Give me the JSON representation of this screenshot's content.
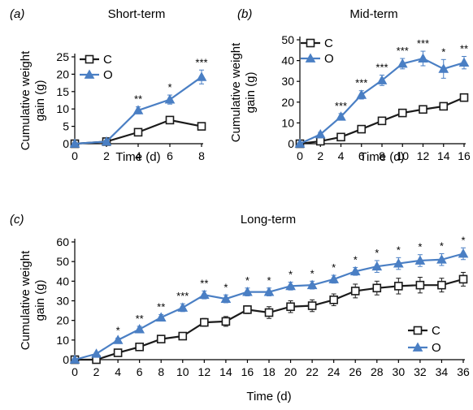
{
  "colors": {
    "control": "#1a1a1a",
    "obese": "#4a7fc4"
  },
  "chart_data": [
    {
      "type": "line",
      "panel_label": "(a)",
      "title": "Short-term",
      "xlabel": "Time (d)",
      "ylabel": "Cumulative weight gain (g)",
      "xlim": [
        0,
        8
      ],
      "ylim": [
        0,
        25
      ],
      "xticks": [
        "0",
        "2",
        "4",
        "6",
        "8"
      ],
      "yticks": [
        "0",
        "5",
        "10",
        "15",
        "20",
        "25"
      ],
      "legend_position": "top-left",
      "x": [
        0,
        2,
        4,
        6,
        8
      ],
      "series": [
        {
          "name": "C",
          "marker": "open-square",
          "values": [
            0,
            0.6,
            3.3,
            6.8,
            5.0
          ],
          "errors": [
            0.3,
            0.4,
            0.6,
            0.9,
            0.8
          ]
        },
        {
          "name": "O",
          "marker": "filled-triangle",
          "values": [
            0,
            0.6,
            9.6,
            12.7,
            19.2
          ],
          "errors": [
            0.3,
            0.4,
            1.0,
            1.3,
            2.0
          ]
        }
      ],
      "significance": [
        "",
        "",
        "**",
        "*",
        "***"
      ]
    },
    {
      "type": "line",
      "panel_label": "(b)",
      "title": "Mid-term",
      "xlabel": "Time (d)",
      "ylabel": "Cumulative weight gain (g)",
      "xlim": [
        0,
        16
      ],
      "ylim": [
        0,
        50
      ],
      "xticks": [
        "0",
        "2",
        "4",
        "6",
        "8",
        "10",
        "12",
        "14",
        "16"
      ],
      "yticks": [
        "0",
        "10",
        "20",
        "30",
        "40",
        "50"
      ],
      "legend_position": "top-left",
      "x": [
        0,
        2,
        4,
        6,
        8,
        10,
        12,
        14,
        16
      ],
      "series": [
        {
          "name": "C",
          "marker": "open-square",
          "values": [
            0,
            1.2,
            3.2,
            7.0,
            11.0,
            14.8,
            16.5,
            18.0,
            22.2
          ],
          "errors": [
            0.3,
            0.5,
            0.7,
            0.9,
            1.0,
            1.2,
            1.3,
            1.5,
            1.8
          ]
        },
        {
          "name": "O",
          "marker": "filled-triangle",
          "values": [
            0,
            4.5,
            13.0,
            23.5,
            30.5,
            38.5,
            41.0,
            36.0,
            39.0
          ],
          "errors": [
            0.3,
            1.0,
            1.5,
            2.0,
            2.5,
            2.5,
            3.5,
            4.5,
            3.0
          ]
        }
      ],
      "significance": [
        "",
        "",
        "***",
        "***",
        "***",
        "***",
        "***",
        "*",
        "**"
      ]
    },
    {
      "type": "line",
      "panel_label": "(c)",
      "title": "Long-term",
      "xlabel": "Time (d)",
      "ylabel": "Cumulative weight gain (g)",
      "xlim": [
        0,
        36
      ],
      "ylim": [
        0,
        60
      ],
      "xticks": [
        "0",
        "2",
        "4",
        "6",
        "8",
        "10",
        "12",
        "14",
        "16",
        "18",
        "20",
        "22",
        "24",
        "26",
        "28",
        "30",
        "32",
        "34",
        "36"
      ],
      "yticks": [
        "0",
        "10",
        "20",
        "30",
        "40",
        "50",
        "60"
      ],
      "legend_position": "bottom-right",
      "x": [
        0,
        2,
        4,
        6,
        8,
        10,
        12,
        14,
        16,
        18,
        20,
        22,
        24,
        26,
        28,
        30,
        32,
        34,
        36
      ],
      "series": [
        {
          "name": "C",
          "marker": "open-square",
          "values": [
            0,
            0,
            3.5,
            6.5,
            10.5,
            12.0,
            19.0,
            19.5,
            25.5,
            24.0,
            27.0,
            27.5,
            30.5,
            35.0,
            36.5,
            37.5,
            38.0,
            38.0,
            41.0
          ],
          "errors": [
            0.3,
            0.3,
            1.0,
            1.0,
            1.5,
            1.5,
            2.0,
            2.5,
            2.0,
            3.0,
            3.0,
            3.0,
            3.0,
            3.5,
            3.5,
            4.0,
            4.0,
            3.5,
            3.5
          ]
        },
        {
          "name": "O",
          "marker": "filled-triangle",
          "values": [
            0,
            3.0,
            10.0,
            15.5,
            21.5,
            26.5,
            33.0,
            31.0,
            34.5,
            34.5,
            37.5,
            38.0,
            41.0,
            45.0,
            47.5,
            49.0,
            50.5,
            51.0,
            54.0
          ],
          "errors": [
            0.3,
            0.5,
            1.0,
            1.5,
            1.5,
            2.0,
            2.0,
            2.0,
            2.0,
            2.0,
            2.0,
            2.0,
            2.0,
            2.0,
            3.0,
            3.0,
            3.0,
            3.0,
            3.0
          ]
        }
      ],
      "significance": [
        "",
        "",
        "*",
        "**",
        "**",
        "***",
        "**",
        "*",
        "*",
        "*",
        "*",
        "*",
        "*",
        "*",
        "*",
        "*",
        "*",
        "*",
        "*"
      ]
    }
  ]
}
